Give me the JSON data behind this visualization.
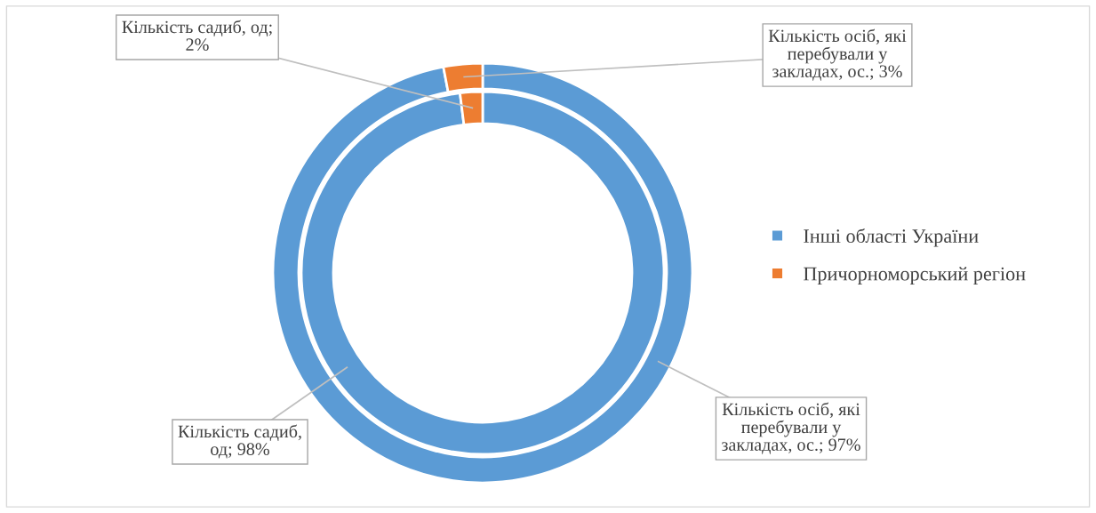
{
  "chart_data": {
    "type": "donut",
    "categories": [
      "Інші області України",
      "Причорноморський регіон"
    ],
    "colors": [
      "#5b9bd5",
      "#ed7d31"
    ],
    "series": [
      {
        "values": [
          98,
          2
        ],
        "value_labels": [
          "Кількість садиб,\nод; 98%",
          "Кількість садиб, од;\n2%"
        ]
      },
      {
        "values": [
          97,
          3
        ],
        "value_labels": [
          "Кількість осіб, які\nперебували у\nзакладах, ос.; 97%",
          "Кількість осіб, які\nперебували у\nзакладах, ос.; 3%"
        ]
      }
    ],
    "legend": "right"
  }
}
